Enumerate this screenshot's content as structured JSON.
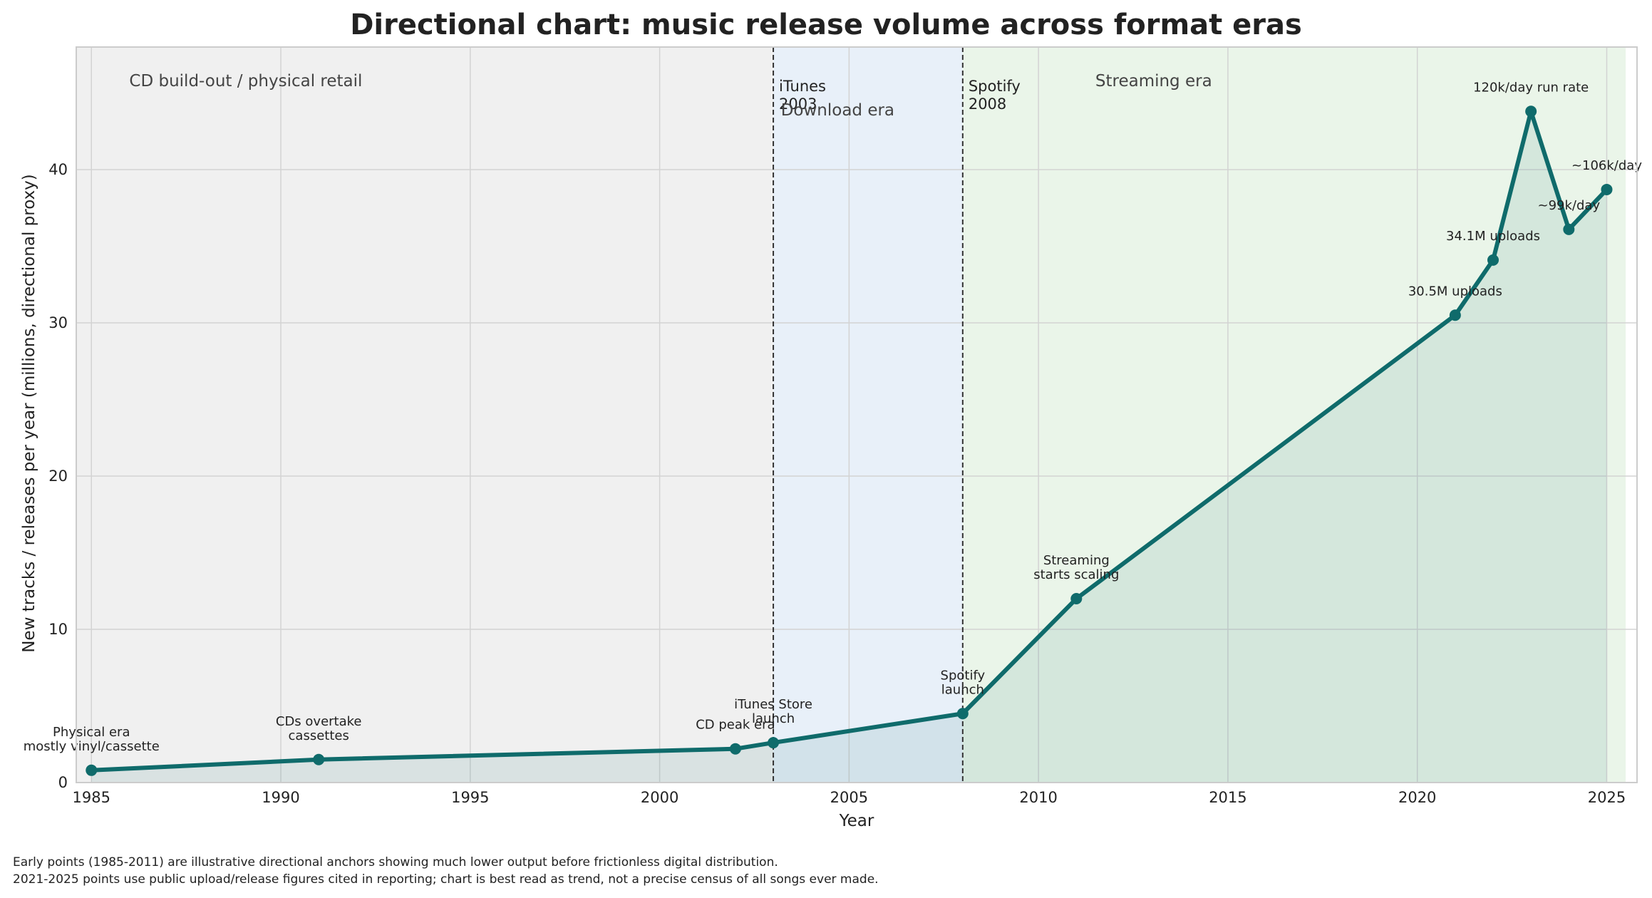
{
  "chart_data": {
    "type": "line",
    "title": "Directional chart: music release volume across format eras",
    "xlabel": "Year",
    "ylabel": "New tracks / releases per year (millions, directional proxy)",
    "xlim": [
      1984.6,
      2025.8
    ],
    "ylim": [
      0,
      48
    ],
    "grid": true,
    "x_ticks": [
      1985,
      1990,
      1995,
      2000,
      2005,
      2010,
      2015,
      2020,
      2025
    ],
    "y_ticks": [
      0,
      10,
      20,
      30,
      40
    ],
    "series": [
      {
        "color": "#0f6b6b",
        "points": [
          {
            "x": 1985,
            "y": 0.8,
            "label": "Physical era\nmostly vinyl/cassette"
          },
          {
            "x": 1991,
            "y": 1.5,
            "label": "CDs overtake\ncassettes"
          },
          {
            "x": 2002,
            "y": 2.2,
            "label": "CD peak era"
          },
          {
            "x": 2003,
            "y": 2.6,
            "label": "iTunes Store\nlaunch"
          },
          {
            "x": 2008,
            "y": 4.5,
            "label": "Spotify\nlaunch"
          },
          {
            "x": 2011,
            "y": 12.0,
            "label": "Streaming\nstarts scaling"
          },
          {
            "x": 2021,
            "y": 30.5,
            "label": "30.5M uploads"
          },
          {
            "x": 2022,
            "y": 34.1,
            "label": "34.1M uploads"
          },
          {
            "x": 2023,
            "y": 43.8,
            "label": "120k/day run rate"
          },
          {
            "x": 2024,
            "y": 36.1,
            "label": "~99k/day"
          },
          {
            "x": 2025,
            "y": 38.7,
            "label": "~106k/day"
          }
        ]
      }
    ],
    "eras": [
      {
        "from": 1984.6,
        "to": 2003,
        "color": "#f0f0f0",
        "label": "CD build-out / physical retail"
      },
      {
        "from": 2003,
        "to": 2008,
        "color": "#e8f0f9",
        "label": "Download era"
      },
      {
        "from": 2008,
        "to": 2025.5,
        "color": "#eaf5e9",
        "label": "Streaming era"
      }
    ],
    "vlines": [
      {
        "x": 2003,
        "label": "iTunes\n2003"
      },
      {
        "x": 2008,
        "label": "Spotify\n2008"
      }
    ],
    "footnote": [
      "Early points (1985-2011) are illustrative directional anchors showing much lower output before frictionless digital distribution.",
      "2021-2025 points use public upload/release figures cited in reporting; chart is best read as trend, not a precise census of all songs ever made."
    ]
  }
}
